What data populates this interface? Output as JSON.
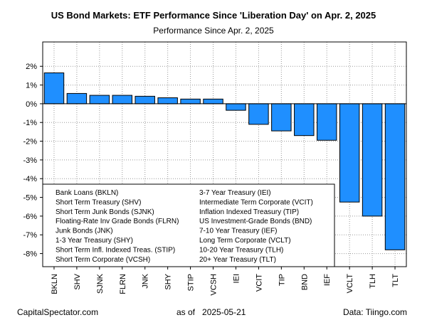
{
  "header": {
    "title": "US Bond Markets: ETF Performance Since 'Liberation Day' on Apr. 2, 2025",
    "subtitle": "Performance Since Apr. 2, 2025"
  },
  "footer": {
    "source_site": "CapitalSpectator.com",
    "as_of_label": "as of",
    "as_of_date": "2025-05-21",
    "data_source": "Data: Tiingo.com"
  },
  "colors": {
    "bar_fill": "#1f8fff",
    "bar_stroke": "#000000",
    "grid": "#999999"
  },
  "chart_data": {
    "type": "bar",
    "title": "US Bond Markets: ETF Performance Since 'Liberation Day' on Apr. 2, 2025",
    "subtitle": "Performance Since Apr. 2, 2025",
    "xlabel": "",
    "ylabel": "",
    "ylim": [
      -8.7,
      3.3
    ],
    "y_ticks": [
      2,
      1,
      0,
      -1,
      -2,
      -3,
      -4,
      -5,
      -6,
      -7,
      -8
    ],
    "y_tick_labels": [
      "2%",
      "1%",
      "0%",
      "-1%",
      "-2%",
      "-3%",
      "-4%",
      "-5%",
      "-6%",
      "-7%",
      "-8%"
    ],
    "grid": true,
    "categories": [
      "BKLN",
      "SHV",
      "SJNK",
      "FLRN",
      "JNK",
      "SHY",
      "STIP",
      "VCSH",
      "IEI",
      "VCIT",
      "TIP",
      "BND",
      "IEF",
      "VCLT",
      "TLH",
      "TLT"
    ],
    "values": [
      1.65,
      0.55,
      0.45,
      0.45,
      0.4,
      0.32,
      0.25,
      0.25,
      -0.35,
      -1.1,
      -1.45,
      -1.7,
      -1.95,
      -5.25,
      -6.0,
      -7.8
    ],
    "legend": {
      "placement": "bottom-left",
      "columns": [
        [
          "Bank Loans (BKLN)",
          "Short Term Treasury (SHV)",
          "Short Term Junk Bonds (SJNK)",
          "Floating-Rate Inv Grade Bonds (FLRN)",
          "Junk Bonds (JNK)",
          "1-3 Year Treasury (SHY)",
          "Short Term Infl. Indexed Treas. (STIP)",
          "Short Term Corporate (VCSH)"
        ],
        [
          "3-7 Year Treasury (IEI)",
          "Intermediate Term Corporate (VCIT)",
          "Inflation Indexed Treasury (TIP)",
          "US Investment-Grade Bonds (BND)",
          "7-10 Year Treasury (IEF)",
          "Long Term Corporate (VCLT)",
          "10-20 Year Treasury (TLH)",
          "20+ Year Treasury (TLT)"
        ]
      ]
    }
  }
}
